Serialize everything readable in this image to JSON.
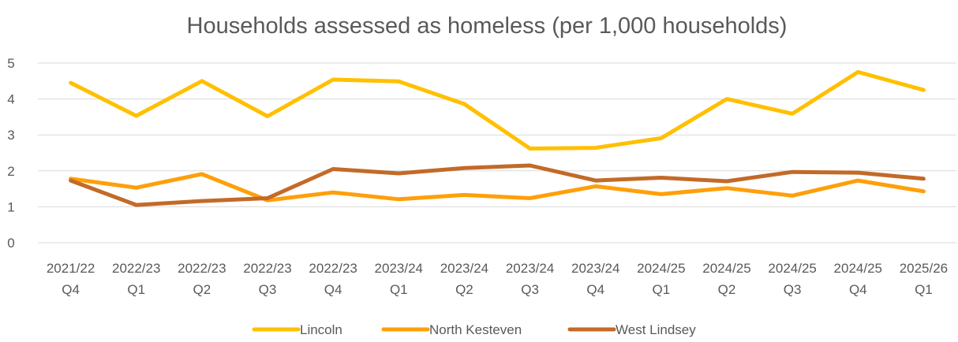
{
  "chart_data": {
    "type": "line",
    "title": "Households assessed as homeless (per 1,000 households)",
    "xlabel": "",
    "ylabel": "",
    "ylim": [
      0,
      5
    ],
    "yticks": [
      "0",
      "1",
      "2",
      "3",
      "4",
      "5"
    ],
    "grid": true,
    "legend_position": "bottom",
    "categories": [
      [
        "2021/22",
        "Q4"
      ],
      [
        "2022/23",
        "Q1"
      ],
      [
        "2022/23",
        "Q2"
      ],
      [
        "2022/23",
        "Q3"
      ],
      [
        "2022/23",
        "Q4"
      ],
      [
        "2023/24",
        "Q1"
      ],
      [
        "2023/24",
        "Q2"
      ],
      [
        "2023/24",
        "Q3"
      ],
      [
        "2023/24",
        "Q4"
      ],
      [
        "2024/25",
        "Q1"
      ],
      [
        "2024/25",
        "Q2"
      ],
      [
        "2024/25",
        "Q3"
      ],
      [
        "2024/25",
        "Q4"
      ],
      [
        "2025/26",
        "Q1"
      ]
    ],
    "series": [
      {
        "name": "Lincoln",
        "color": "#ffc000",
        "values": [
          4.45,
          3.53,
          4.5,
          3.52,
          4.54,
          4.49,
          3.86,
          2.62,
          2.64,
          2.91,
          4.0,
          3.59,
          4.75,
          4.25
        ]
      },
      {
        "name": "North Kesteven",
        "color": "#ff9f09",
        "values": [
          1.78,
          1.53,
          1.91,
          1.18,
          1.4,
          1.21,
          1.33,
          1.24,
          1.57,
          1.35,
          1.52,
          1.31,
          1.73,
          1.43
        ]
      },
      {
        "name": "West Lindsey",
        "color": "#c36a28",
        "values": [
          1.73,
          1.05,
          1.16,
          1.24,
          2.05,
          1.93,
          2.08,
          2.15,
          1.73,
          1.81,
          1.71,
          1.97,
          1.95,
          1.78
        ]
      }
    ]
  }
}
